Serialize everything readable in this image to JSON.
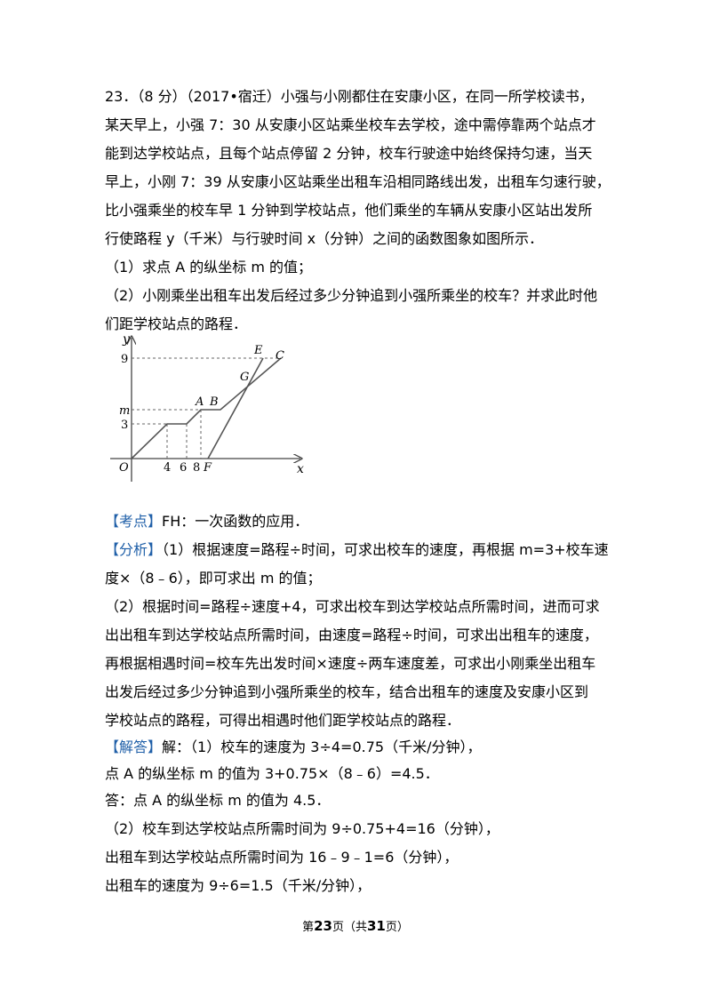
{
  "problem": {
    "lines": [
      "23．（8 分）（2017•宿迁）小强与小刚都住在安康小区，在同一所学校读书，",
      "某天早上，小强 7：30 从安康小区站乘坐校车去学校，途中需停靠两个站点才",
      "能到达学校站点，且每个站点停留 2 分钟，校车行驶途中始终保持匀速，当天",
      "早上，小刚 7：39 从安康小区站乘坐出租车沿相同路线出发，出租车匀速行驶，",
      "比小强乘坐的校车早 1 分钟到学校站点，他们乘坐的车辆从安康小区站出发所",
      "行使路程 y（千米）与行驶时间 x（分钟）之间的函数图象如图所示．"
    ],
    "q1": "（1）求点 A 的纵坐标 m 的值；",
    "q2_lines": [
      "（2）小刚乘坐出租车出发后经过多少分钟追到小强所乘坐的校车？并求此时他",
      "们距学校站点的路程．"
    ]
  },
  "graph": {
    "axis_x": "x",
    "axis_y": "y",
    "origin": "O",
    "x_ticks": [
      "4",
      "6",
      "8",
      "F"
    ],
    "y_ticks": [
      "3",
      "m",
      "9"
    ],
    "points": [
      "A",
      "B",
      "G",
      "E",
      "C"
    ],
    "colors": {
      "curve": "#555555",
      "dash": "#666666",
      "axis": "#444444"
    }
  },
  "kaodian": {
    "tag": "【考点】",
    "text": "FH：一次函数的应用．"
  },
  "fenxi": {
    "tag": "【分析】",
    "first": "（1）根据速度=路程÷时间，可求出校车的速度，再根据 m=3+校车速",
    "lines": [
      "度×（8﹣6），即可求出 m 的值；",
      "（2）根据时间=路程÷速度+4，可求出校车到达学校站点所需时间，进而可求",
      "出出租车到达学校站点所需时间，由速度=路程÷时间，可求出出租车的速度，",
      "再根据相遇时间=校车先出发时间×速度÷两车速度差，可求出小刚乘坐出租车",
      "出发后经过多少分钟追到小强所乘坐的校车，结合出租车的速度及安康小区到",
      "学校站点的路程，可得出相遇时他们距学校站点的路程．"
    ]
  },
  "jieda": {
    "tag": "【解答】",
    "first": "解：（1）校车的速度为 3÷4=0.75（千米/分钟），",
    "lines": [
      "点 A 的纵坐标 m 的值为 3+0.75×（8﹣6）=4.5．",
      "答：点 A 的纵坐标 m 的值为 4.5．",
      "（2）校车到达学校站点所需时间为 9÷0.75+4=16（分钟），",
      "出租车到达学校站点所需时间为 16﹣9﹣1=6（分钟），",
      "出租车的速度为 9÷6=1.5（千米/分钟），"
    ]
  },
  "footer": {
    "prefix": "第",
    "page": "23",
    "mid": "页（共",
    "total": "31",
    "suffix": "页）"
  }
}
